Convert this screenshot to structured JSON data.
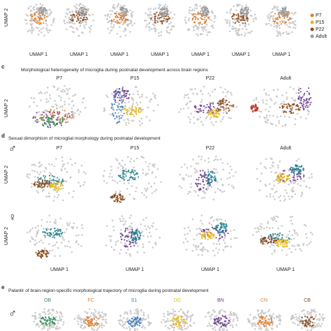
{
  "top_row": {
    "y_label": "UMAP 2",
    "x_labels": [
      "UMAP 1",
      "UMAP 1",
      "UMAP 1",
      "UMAP 1",
      "UMAP 1",
      "UMAP 1",
      "UMAP 1"
    ],
    "legend": [
      "P7",
      "P15",
      "P22",
      "Adult"
    ]
  },
  "panel_c": {
    "letter": "c",
    "title": "Morphological heterogeneity of microglia during postnatal development across brain regions",
    "y_label": "UMAP 2",
    "columns": [
      "P7",
      "P15",
      "P22",
      "Adult"
    ]
  },
  "panel_d": {
    "letter": "d",
    "title": "Sexual dimorphism of microglial morphology during postnatal development",
    "male": "♂",
    "female": "♀",
    "columns": [
      "P7",
      "P15",
      "P22",
      "Adult"
    ],
    "y_labels": [
      "UMAP 2",
      "UMAP 2"
    ],
    "x_labels": [
      "UMAP 1",
      "UMAP 1",
      "UMAP 1",
      "UMAP 1"
    ]
  },
  "panel_e": {
    "letter": "e",
    "title": "Palantir of brain-region-specific morphological trajectory of microglia during postnatal development",
    "male": "♂",
    "regions": [
      "OB",
      "FC",
      "S1",
      "DG",
      "BN",
      "CN",
      "CB"
    ]
  }
}
